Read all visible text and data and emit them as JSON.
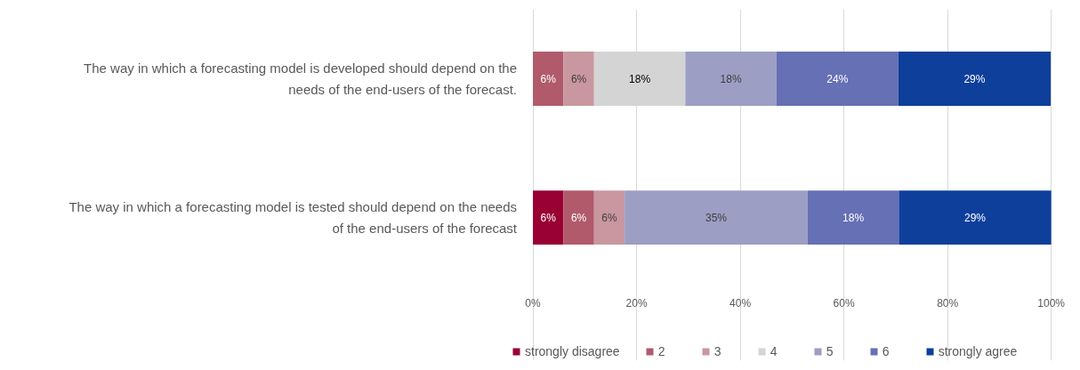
{
  "chart_data": {
    "type": "bar",
    "orientation": "horizontal",
    "stacked": true,
    "categories": [
      "The way in which a forecasting model is developed should depend on the needs of the end-users of the forecast.",
      "The way in which a forecasting model is tested should depend on the needs of the end-users of the forecast"
    ],
    "series": [
      {
        "name": "strongly disagree",
        "color": "#990033",
        "values": [
          0,
          5.9
        ],
        "value_labels": [
          null,
          "6%"
        ]
      },
      {
        "name": "2",
        "color": "#b05a6b",
        "values": [
          5.9,
          5.9
        ],
        "value_labels": [
          "6%",
          "6%"
        ]
      },
      {
        "name": "3",
        "color": "#c9979f",
        "values": [
          5.9,
          5.9
        ],
        "value_labels": [
          "6%",
          "6%"
        ]
      },
      {
        "name": "4",
        "color": "#d4d4d4",
        "values": [
          17.6,
          0
        ],
        "value_labels": [
          "18%",
          null
        ]
      },
      {
        "name": "5",
        "color": "#9c9ec4",
        "values": [
          17.6,
          35.3
        ],
        "value_labels": [
          "18%",
          "35%"
        ]
      },
      {
        "name": "6",
        "color": "#6670b4",
        "values": [
          23.5,
          17.6
        ],
        "value_labels": [
          "24%",
          "18%"
        ]
      },
      {
        "name": "strongly agree",
        "color": "#0d3f9b",
        "values": [
          29.4,
          29.4
        ],
        "value_labels": [
          "29%",
          "29%"
        ]
      }
    ],
    "xlim": [
      0,
      100
    ],
    "xticks": [
      {
        "value": 0,
        "label": "0%"
      },
      {
        "value": 20,
        "label": "20%"
      },
      {
        "value": 40,
        "label": "40%"
      },
      {
        "value": 60,
        "label": "60%"
      },
      {
        "value": 80,
        "label": "80%"
      },
      {
        "value": 100,
        "label": "100%"
      }
    ],
    "grid": "x",
    "legend": "bottom"
  }
}
